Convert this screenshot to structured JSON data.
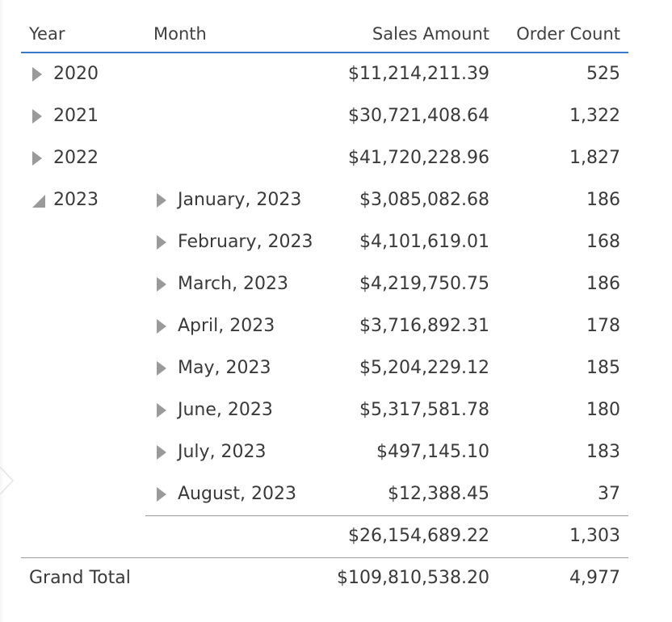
{
  "headers": {
    "year": "Year",
    "month": "Month",
    "sales": "Sales Amount",
    "orders": "Order Count"
  },
  "years": [
    {
      "year": "2020",
      "sales": "$11,214,211.39",
      "orders": "525",
      "expanded": false
    },
    {
      "year": "2021",
      "sales": "$30,721,408.64",
      "orders": "1,322",
      "expanded": false
    },
    {
      "year": "2022",
      "sales": "$41,720,228.96",
      "orders": "1,827",
      "expanded": false
    },
    {
      "year": "2023",
      "expanded": true
    }
  ],
  "months_2023": [
    {
      "month": "January, 2023",
      "sales": "$3,085,082.68",
      "orders": "186"
    },
    {
      "month": "February, 2023",
      "sales": "$4,101,619.01",
      "orders": "168"
    },
    {
      "month": "March, 2023",
      "sales": "$4,219,750.75",
      "orders": "186"
    },
    {
      "month": "April, 2023",
      "sales": "$3,716,892.31",
      "orders": "178"
    },
    {
      "month": "May, 2023",
      "sales": "$5,204,229.12",
      "orders": "185"
    },
    {
      "month": "June, 2023",
      "sales": "$5,317,581.78",
      "orders": "180"
    },
    {
      "month": "July, 2023",
      "sales": "$497,145.10",
      "orders": "183"
    },
    {
      "month": "August, 2023",
      "sales": "$12,388.45",
      "orders": "37"
    }
  ],
  "subtotal_2023": {
    "sales": "$26,154,689.22",
    "orders": "1,303"
  },
  "grand_total": {
    "label": "Grand Total",
    "sales": "$109,810,538.20",
    "orders": "4,977"
  },
  "colors": {
    "header_rule": "#3a78c9",
    "expander": "#9a9a9a",
    "text": "#3a3a3a"
  }
}
